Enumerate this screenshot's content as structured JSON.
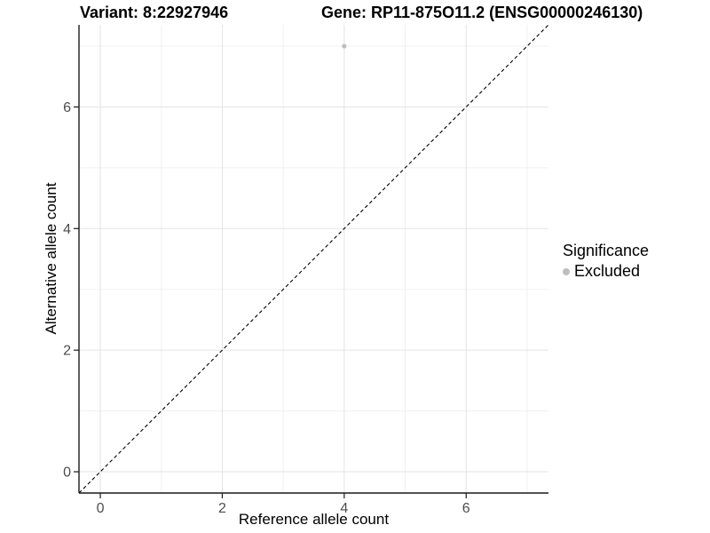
{
  "chart_data": {
    "type": "scatter",
    "variant_title": "Variant: 8:22927946",
    "gene_title": "Gene: RP11-875O11.2 (ENSG00000246130)",
    "xlabel": "Reference allele count",
    "ylabel": "Alternative allele count",
    "xlim": [
      -0.35,
      7.35
    ],
    "ylim": [
      -0.35,
      7.35
    ],
    "x_ticks": [
      0,
      2,
      4,
      6
    ],
    "y_ticks": [
      0,
      2,
      4,
      6
    ],
    "x_minor_ticks": [
      1,
      3,
      5,
      7
    ],
    "y_minor_ticks": [
      1,
      3,
      5,
      7
    ],
    "grid": "major+minor",
    "identity_line": {
      "style": "dashed",
      "color": "#000000",
      "from": [
        -0.35,
        -0.35
      ],
      "to": [
        7.35,
        7.35
      ]
    },
    "series": [
      {
        "name": "Excluded",
        "color": "#bebebe",
        "marker": "circle",
        "points": [
          [
            4,
            7
          ]
        ]
      }
    ],
    "legend": {
      "title": "Significance",
      "position": "right",
      "entries": [
        {
          "label": "Excluded",
          "color": "#bebebe"
        }
      ]
    }
  },
  "style": {
    "background": "#ffffff",
    "grid_major_color": "#e3e3e3",
    "grid_minor_color": "#f0f0f0",
    "axis_color": "#1a1a1a",
    "tick_label_color": "#4d4d4d"
  }
}
